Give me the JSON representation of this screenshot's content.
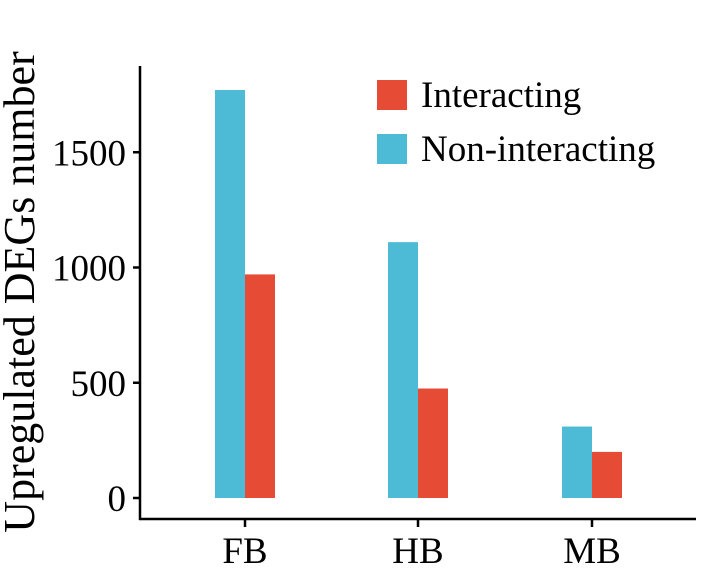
{
  "chart_data": {
    "type": "bar",
    "title": "",
    "xlabel": "",
    "ylabel": "Upregulated DEGs number",
    "categories": [
      "FB",
      "HB",
      "MB"
    ],
    "series": [
      {
        "name": "Non-interacting",
        "color": "#4DBBD5",
        "values": [
          1770,
          1110,
          310
        ]
      },
      {
        "name": "Interacting",
        "color": "#E64B35",
        "values": [
          970,
          475,
          200
        ]
      }
    ],
    "yticks": [
      0,
      500,
      1000,
      1500
    ],
    "ylim": [
      0,
      1780
    ],
    "grid": false,
    "legend": {
      "position": "top-right",
      "order": [
        "Interacting",
        "Non-interacting"
      ]
    }
  }
}
